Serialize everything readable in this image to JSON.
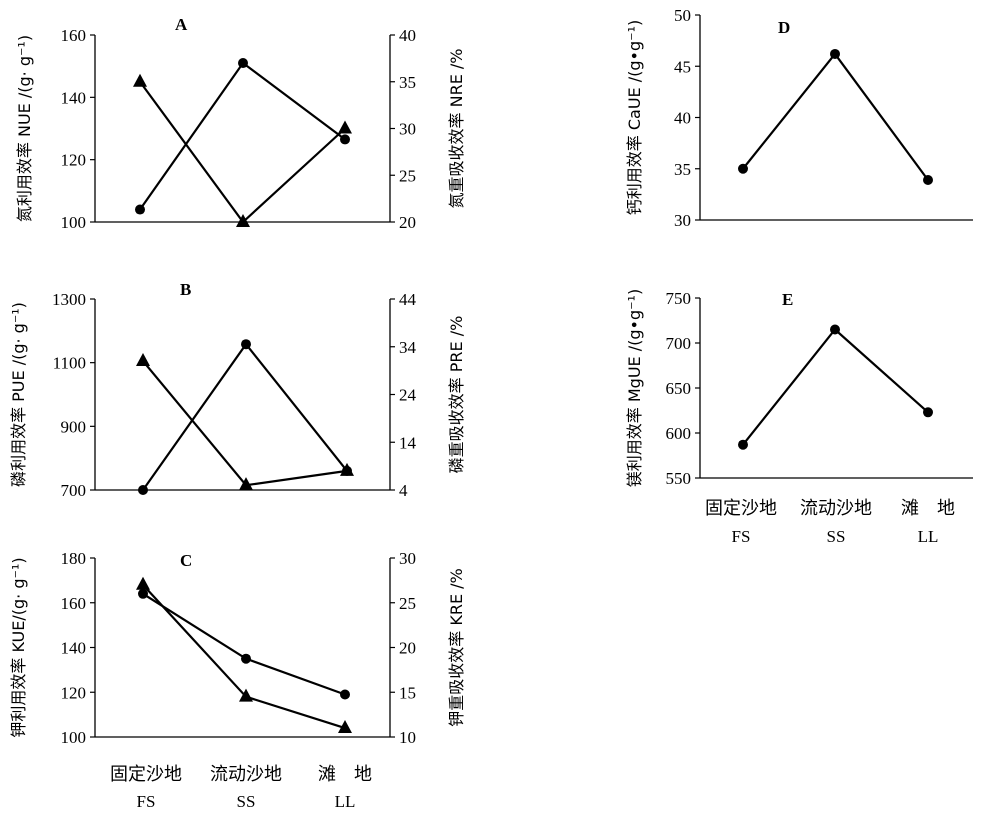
{
  "figure": {
    "categories_cn": [
      "固定沙地",
      "流动沙地",
      "滩　地"
    ],
    "categories_abbr": [
      "FS",
      "SS",
      "LL"
    ]
  },
  "chart_data": [
    {
      "panel": "A",
      "type": "line",
      "categories": [
        "FS",
        "SS",
        "LL"
      ],
      "left_axis": {
        "label": "氮利用效率 NUE /(g· g⁻¹)",
        "range": [
          100,
          160
        ],
        "ticks": [
          100,
          120,
          140,
          160
        ]
      },
      "right_axis": {
        "label": "氮重吸收效率 NRE /%",
        "range": [
          20,
          40
        ],
        "ticks": [
          20,
          25,
          30,
          35,
          40
        ]
      },
      "series": [
        {
          "name": "NUE",
          "axis": "left",
          "marker": "circle",
          "values": [
            104,
            151,
            126.5
          ]
        },
        {
          "name": "NRE",
          "axis": "right",
          "marker": "triangle",
          "values": [
            35,
            20,
            30
          ]
        }
      ]
    },
    {
      "panel": "B",
      "type": "line",
      "categories": [
        "FS",
        "SS",
        "LL"
      ],
      "left_axis": {
        "label": "磷利用效率 PUE /(g· g⁻¹)",
        "range": [
          700,
          1300
        ],
        "ticks": [
          700,
          900,
          1100,
          1300
        ]
      },
      "right_axis": {
        "label": "磷重吸收效率 PRE /%",
        "range": [
          4,
          44
        ],
        "ticks": [
          4,
          14,
          24,
          34,
          44
        ]
      },
      "series": [
        {
          "name": "PUE",
          "axis": "left",
          "marker": "circle",
          "values": [
            700,
            1158,
            760
          ]
        },
        {
          "name": "PRE",
          "axis": "right",
          "marker": "triangle",
          "values": [
            31,
            5,
            8
          ]
        }
      ]
    },
    {
      "panel": "C",
      "type": "line",
      "categories": [
        "FS",
        "SS",
        "LL"
      ],
      "left_axis": {
        "label": "钾利用效率 KUE/(g· g⁻¹)",
        "range": [
          100,
          180
        ],
        "ticks": [
          100,
          120,
          140,
          160,
          180
        ]
      },
      "right_axis": {
        "label": "钾重吸收效率 KRE /%",
        "range": [
          10,
          30
        ],
        "ticks": [
          10,
          15,
          20,
          25,
          30
        ]
      },
      "series": [
        {
          "name": "KUE",
          "axis": "left",
          "marker": "circle",
          "values": [
            164,
            135,
            119
          ]
        },
        {
          "name": "KRE",
          "axis": "right",
          "marker": "triangle",
          "values": [
            27,
            14.5,
            11
          ]
        }
      ]
    },
    {
      "panel": "D",
      "type": "line",
      "categories": [
        "FS",
        "SS",
        "LL"
      ],
      "left_axis": {
        "label": "钙利用效率 CaUE /(g•g⁻¹)",
        "range": [
          30,
          50
        ],
        "ticks": [
          30,
          35,
          40,
          45,
          50
        ]
      },
      "series": [
        {
          "name": "CaUE",
          "axis": "left",
          "marker": "circle",
          "values": [
            35,
            46.2,
            33.9
          ]
        }
      ]
    },
    {
      "panel": "E",
      "type": "line",
      "categories": [
        "FS",
        "SS",
        "LL"
      ],
      "left_axis": {
        "label": "镁利用效率 MgUE /(g•g⁻¹)",
        "range": [
          550,
          750
        ],
        "ticks": [
          550,
          600,
          650,
          700,
          750
        ]
      },
      "series": [
        {
          "name": "MgUE",
          "axis": "left",
          "marker": "circle",
          "values": [
            587,
            715,
            623
          ]
        }
      ]
    }
  ]
}
